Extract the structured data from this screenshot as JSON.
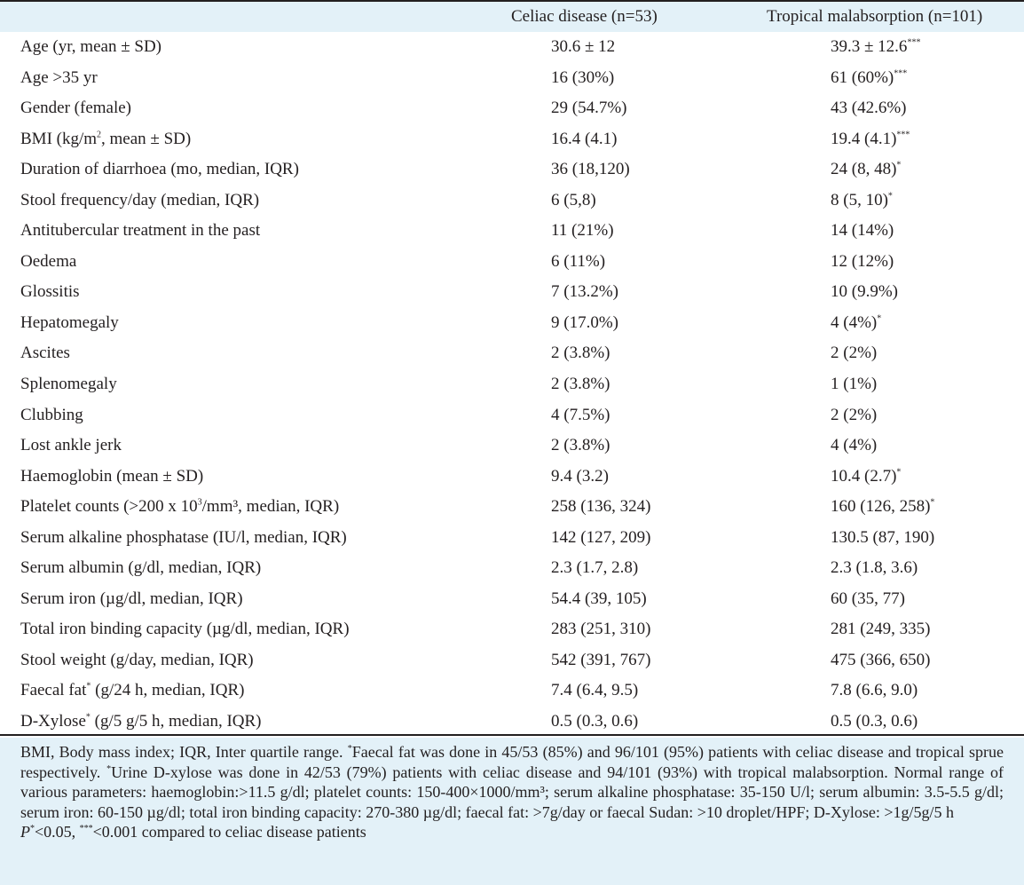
{
  "header": {
    "col2": "Celiac disease (n=53)",
    "col3": "Tropical malabsorption (n=101)"
  },
  "rows": [
    {
      "label": "Age (yr, mean ± SD)",
      "celiac": "30.6 ± 12",
      "tropical": "39.3 ± 12.6",
      "tropical_sup": "***"
    },
    {
      "label": "Age >35 yr",
      "celiac": "16 (30%)",
      "tropical": "61 (60%)",
      "tropical_sup": "***"
    },
    {
      "label": "Gender (female)",
      "celiac": "29 (54.7%)",
      "tropical": "43 (42.6%)"
    },
    {
      "label_pre": "BMI (kg/m",
      "label_sup": "2",
      "label_post": ", mean ± SD)",
      "celiac": "16.4 (4.1)",
      "tropical": "19.4 (4.1)",
      "tropical_sup": "***"
    },
    {
      "label": "Duration of diarrhoea (mo, median, IQR)",
      "celiac": "36 (18,120)",
      "tropical": "24 (8, 48)",
      "tropical_sup": "*"
    },
    {
      "label": "Stool frequency/day (median, IQR)",
      "celiac": "6 (5,8)",
      "tropical": "8 (5, 10)",
      "tropical_sup": "*"
    },
    {
      "label": "Antitubercular treatment in the past",
      "celiac": "11 (21%)",
      "tropical": "14 (14%)"
    },
    {
      "label": "Oedema",
      "celiac": "6 (11%)",
      "tropical": "12 (12%)"
    },
    {
      "label": "Glossitis",
      "celiac": "7 (13.2%)",
      "tropical": "10 (9.9%)"
    },
    {
      "label": "Hepatomegaly",
      "celiac": "9 (17.0%)",
      "tropical": "4 (4%)",
      "tropical_sup": "*"
    },
    {
      "label": "Ascites",
      "celiac": "2 (3.8%)",
      "tropical": "2 (2%)"
    },
    {
      "label": "Splenomegaly",
      "celiac": "2 (3.8%)",
      "tropical": "1 (1%)"
    },
    {
      "label": "Clubbing",
      "celiac": "4 (7.5%)",
      "tropical": "2 (2%)"
    },
    {
      "label": "Lost ankle jerk",
      "celiac": "2 (3.8%)",
      "tropical": "4 (4%)"
    },
    {
      "label": "Haemoglobin (mean ± SD)",
      "celiac": "9.4 (3.2)",
      "tropical": "10.4 (2.7)",
      "tropical_sup": "*"
    },
    {
      "label_pre": "Platelet counts (>200 x 10",
      "label_sup": "3",
      "label_post": "/mm³, median, IQR)",
      "celiac": "258 (136, 324)",
      "tropical": "160 (126, 258)",
      "tropical_sup": "*"
    },
    {
      "label": "Serum alkaline phosphatase (IU/l, median, IQR)",
      "celiac": "142 (127, 209)",
      "tropical": "130.5 (87, 190)"
    },
    {
      "label": "Serum albumin (g/dl, median, IQR)",
      "celiac": "2.3 (1.7, 2.8)",
      "tropical": "2.3 (1.8, 3.6)"
    },
    {
      "label": "Serum iron (µg/dl, median, IQR)",
      "celiac": "54.4 (39, 105)",
      "tropical": "60 (35, 77)"
    },
    {
      "label": "Total iron binding capacity (µg/dl, median, IQR)",
      "celiac": "283 (251, 310)",
      "tropical": "281 (249, 335)"
    },
    {
      "label": "Stool weight (g/day, median, IQR)",
      "celiac": "542 (391, 767)",
      "tropical": "475 (366, 650)"
    },
    {
      "label_pre": "Faecal fat",
      "label_sup": "*",
      "label_post": " (g/24 h, median, IQR)",
      "celiac": "7.4 (6.4, 9.5)",
      "tropical": "7.8 (6.6, 9.0)"
    },
    {
      "label_pre": "D-Xylose",
      "label_sup": "*",
      "label_post": " (g/5 g/5 h, median, IQR)",
      "celiac": "0.5 (0.3, 0.6)",
      "tropical": "0.5 (0.3, 0.6)"
    }
  ],
  "footnote": {
    "p1_a": "BMI, Body mass index; IQR, Inter quartile range. ",
    "p1_sup1": "*",
    "p1_b": "Faecal fat was done in 45/53 (85%) and 96/101 (95%) patients with celiac disease and tropical sprue respectively. ",
    "p1_sup2": "*",
    "p1_c": "Urine D-xylose was done in 42/53 (79%) patients with celiac disease and 94/101 (93%) with tropical malabsorption. Normal range of various parameters: haemoglobin:>11.5 g/dl; platelet counts: 150-400×1000/mm³; serum alkaline phosphatase: 35-150 U/l; serum albumin: 3.5-5.5 g/dl; serum iron: 60-150 µg/dl; total iron binding capacity: 270-380 µg/dl; faecal fat: >7g/day or faecal Sudan: >10 droplet/HPF; D-Xylose: >1g/5g/5 h",
    "p2_p": "P",
    "p2_sup1": "*",
    "p2_a": "<0.05, ",
    "p2_sup2": "***",
    "p2_b": "<0.001 compared to celiac disease patients"
  },
  "colors": {
    "background_tint": "#e3f1f8",
    "body_row_background": "#ffffff",
    "rule": "#231f20"
  }
}
